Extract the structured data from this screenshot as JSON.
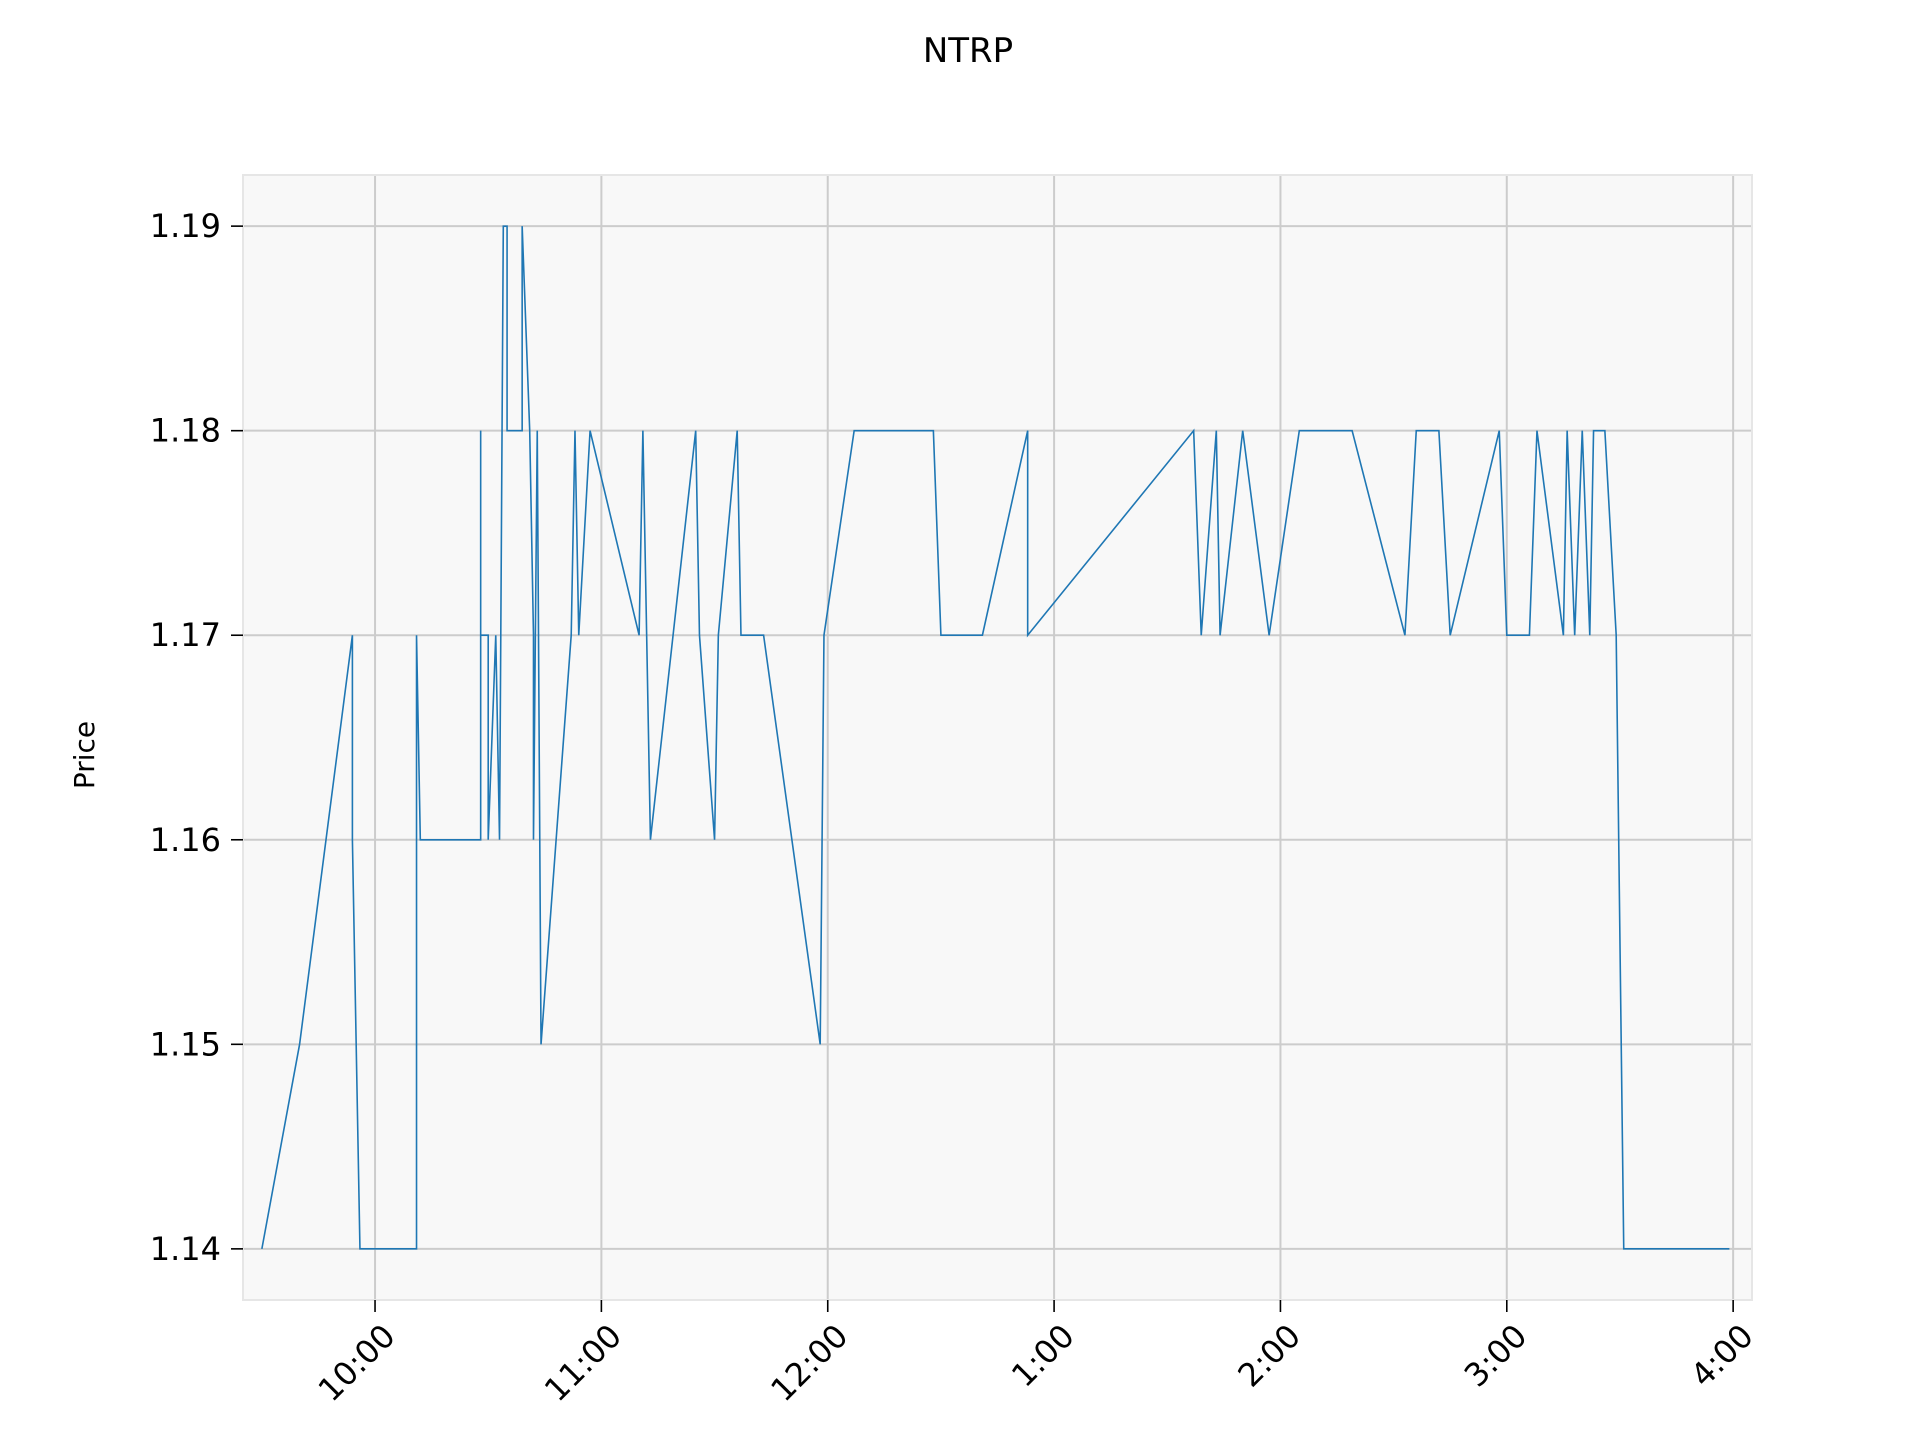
{
  "chart_data": {
    "type": "line",
    "title": "NTRP",
    "xlabel": "",
    "ylabel": "Price",
    "x_tick_labels": [
      "10:00",
      "11:00",
      "12:00",
      "1:00",
      "2:00",
      "3:00",
      "4:00"
    ],
    "x_tick_values": [
      "10:00",
      "11:00",
      "12:00",
      "13:00",
      "14:00",
      "15:00",
      "16:00"
    ],
    "y_ticks": [
      1.14,
      1.15,
      1.16,
      1.17,
      1.18,
      1.19
    ],
    "y_tick_labels": [
      "1.14",
      "1.15",
      "1.16",
      "1.17",
      "1.18",
      "1.19"
    ],
    "xlim": [
      "09:25",
      "16:05"
    ],
    "ylim": [
      1.1375,
      1.1925
    ],
    "grid": true,
    "colors": {
      "line": "#1f77b4",
      "plot_background": "#f8f8f8",
      "grid": "#cccccc",
      "spine": "#e6e6e6"
    },
    "x": [
      "09:30",
      "09:40",
      "09:54",
      "09:54",
      "09:56",
      "10:11",
      "10:11",
      "10:12",
      "10:28",
      "10:28",
      "10:28",
      "10:30",
      "10:30",
      "10:32",
      "10:33",
      "10:34",
      "10:35",
      "10:35",
      "10:39",
      "10:39",
      "10:41",
      "10:41",
      "10:42",
      "10:42",
      "10:42",
      "10:43",
      "10:44",
      "10:52",
      "10:53",
      "10:53",
      "10:54",
      "10:57",
      "10:57",
      "11:10",
      "11:11",
      "11:13",
      "11:25",
      "11:26",
      "11:30",
      "11:31",
      "11:36",
      "11:37",
      "11:43",
      "11:58",
      "11:59",
      "12:07",
      "12:09",
      "12:28",
      "12:30",
      "12:41",
      "12:53",
      "12:53",
      "13:37",
      "13:39",
      "13:43",
      "13:44",
      "13:50",
      "13:57",
      "14:05",
      "14:19",
      "14:33",
      "14:36",
      "14:42",
      "14:45",
      "14:58",
      "15:00",
      "15:06",
      "15:08",
      "15:15",
      "15:16",
      "15:18",
      "15:20",
      "15:22",
      "15:23",
      "15:24",
      "15:26",
      "15:29",
      "15:31",
      "15:35",
      "15:35",
      "15:59",
      "15:59",
      "15:59"
    ],
    "series": [
      {
        "values": [
          1.14,
          1.15,
          1.17,
          1.16,
          1.14,
          1.14,
          1.17,
          1.16,
          1.16,
          1.18,
          1.17,
          1.17,
          1.16,
          1.17,
          1.16,
          1.19,
          1.19,
          1.18,
          1.18,
          1.19,
          1.18,
          1.18,
          1.17,
          1.16,
          1.16,
          1.18,
          1.15,
          1.17,
          1.18,
          1.18,
          1.17,
          1.18,
          1.18,
          1.17,
          1.18,
          1.16,
          1.18,
          1.17,
          1.16,
          1.17,
          1.18,
          1.17,
          1.17,
          1.15,
          1.17,
          1.18,
          1.18,
          1.18,
          1.17,
          1.17,
          1.18,
          1.17,
          1.18,
          1.17,
          1.18,
          1.17,
          1.18,
          1.17,
          1.18,
          1.18,
          1.17,
          1.18,
          1.18,
          1.17,
          1.18,
          1.17,
          1.17,
          1.18,
          1.17,
          1.18,
          1.17,
          1.18,
          1.17,
          1.18,
          1.18,
          1.18,
          1.17,
          1.14,
          1.14,
          1.14,
          1.14,
          1.14,
          1.14
        ]
      }
    ]
  }
}
